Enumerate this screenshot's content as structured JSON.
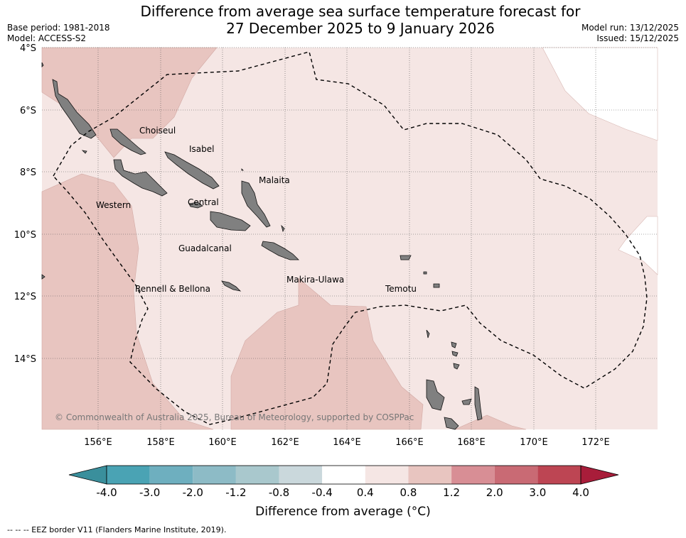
{
  "title_line1": "Difference from average sea surface temperature forecast for",
  "title_line2": "27 December 2025 to 9 January 2026",
  "base_period": "Base period: 1981-2018",
  "model": "Model: ACCESS-S2",
  "model_run": "Model run: 13/12/2025",
  "issued": "Issued: 15/12/2025",
  "lat_labels": [
    "4°S",
    "6°S",
    "8°S",
    "10°S",
    "12°S",
    "14°S"
  ],
  "lon_labels": [
    "156°E",
    "158°E",
    "160°E",
    "162°E",
    "164°E",
    "166°E",
    "168°E",
    "170°E",
    "172°E"
  ],
  "provinces": [
    "Choiseul",
    "Isabel",
    "Malaita",
    "Western",
    "Central",
    "Guadalcanal",
    "Rennell & Bellona",
    "Makira-Ulawa",
    "Temotu"
  ],
  "copyright": "© Commonwealth of Australia 2025, Bureau of Meteorology, supported by COSPPac",
  "colorbar": {
    "ticks": [
      "-4.0",
      "-3.0",
      "-2.0",
      "-1.2",
      "-0.8",
      "-0.4",
      "0.4",
      "0.8",
      "1.2",
      "2.0",
      "3.0",
      "4.0"
    ],
    "colors": [
      "#3a8f9c",
      "#4aa3b4",
      "#6eafbf",
      "#8dbbc6",
      "#a9c8cd",
      "#cad8dc",
      "#ffffff",
      "#f5e6e4",
      "#e8c5c0",
      "#d88e95",
      "#c96a74",
      "#bd4553",
      "#a81d3a"
    ],
    "label": "Difference from average (°C)"
  },
  "eez_note": "--  --  -- EEZ border V11 (Flanders Marine Institute, 2019).",
  "legend_colors": {
    "light_warm": "#f5e6e4",
    "warm": "#e8c5c0",
    "land": "#808080"
  }
}
